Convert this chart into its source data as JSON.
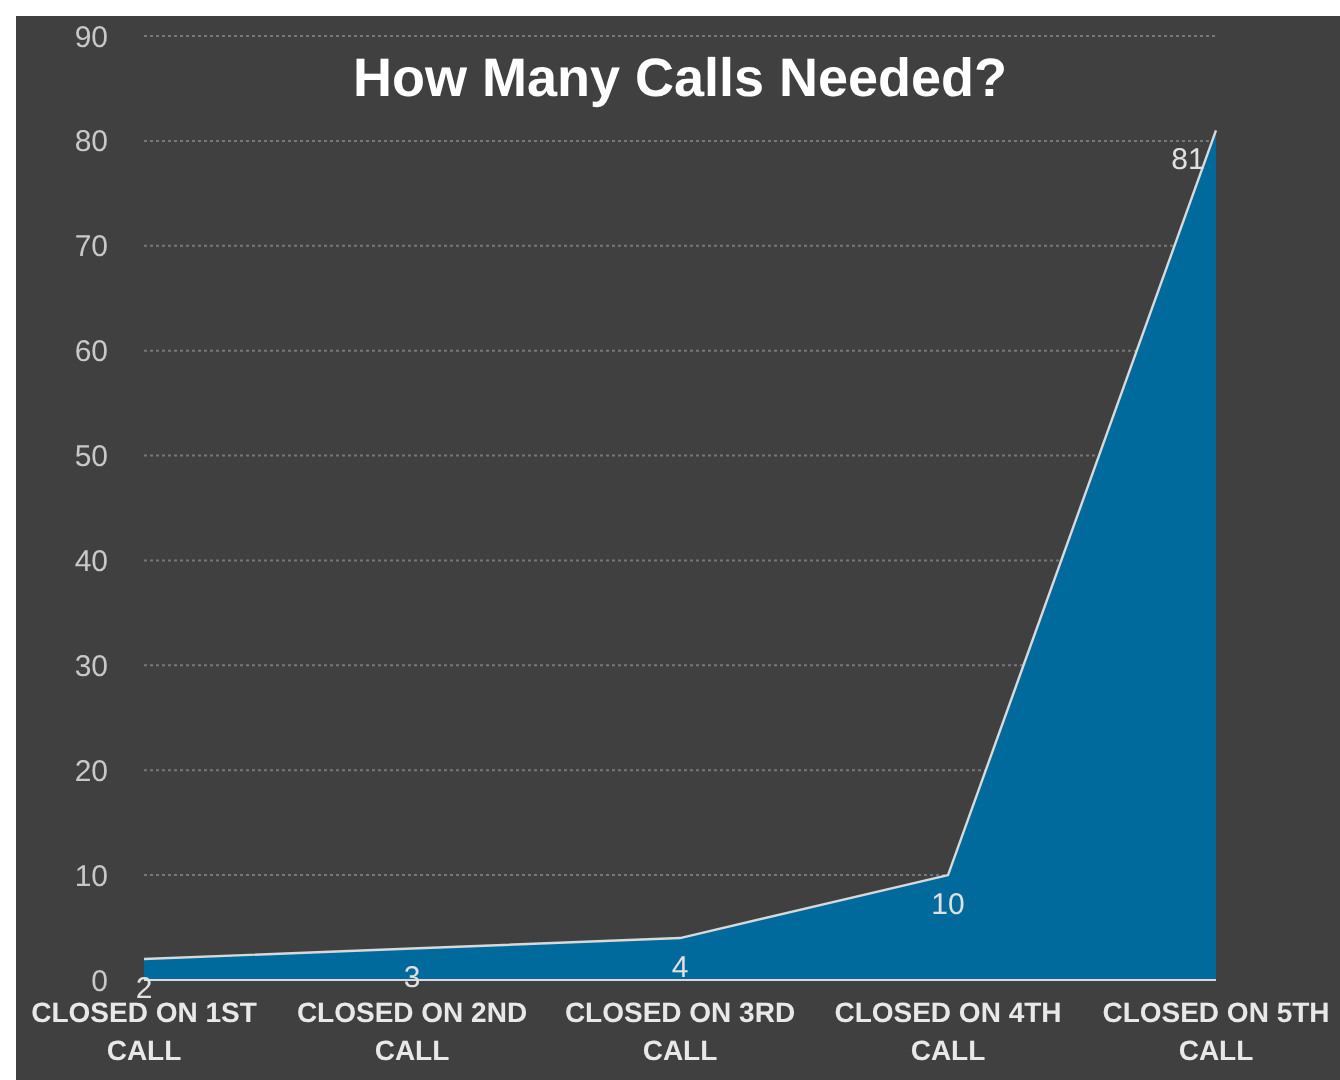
{
  "chart_data": {
    "type": "area",
    "title": "How Many Calls Needed?",
    "categories": [
      "CLOSED ON 1ST CALL",
      "CLOSED ON 2ND CALL",
      "CLOSED ON 3RD CALL",
      "CLOSED ON 4TH CALL",
      "CLOSED ON 5TH CALL"
    ],
    "series": [
      {
        "color": "#006a9c",
        "values": [
          2,
          3,
          4,
          10,
          81
        ]
      }
    ],
    "ylim": [
      0,
      90
    ],
    "yticks": [
      0,
      10,
      20,
      30,
      40,
      50,
      60,
      70,
      80,
      90
    ],
    "grid": "y",
    "value_labels": [
      "2",
      "3",
      "4",
      "10",
      "81"
    ]
  }
}
